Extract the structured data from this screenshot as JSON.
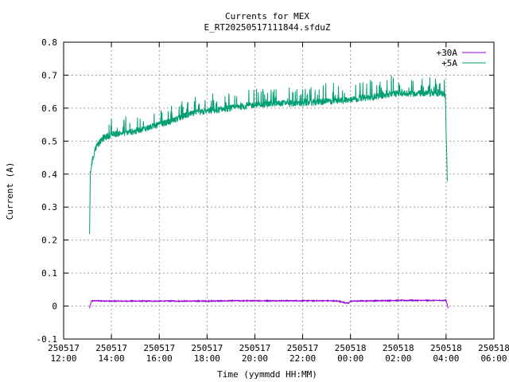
{
  "chart_data": {
    "type": "line",
    "title": "Currents for MEX",
    "subtitle": "E_RT20250517111844.sfduZ",
    "xlabel": "Time (yymmdd HH:MM)",
    "ylabel": "Current (A)",
    "xlim": [
      "250517 12:00",
      "250518 06:00"
    ],
    "ylim": [
      -0.1,
      0.8
    ],
    "yticks": [
      -0.1,
      0,
      0.1,
      0.2,
      0.3,
      0.4,
      0.5,
      0.6,
      0.7,
      0.8
    ],
    "ytick_labels": [
      "-0.1",
      "0",
      "0.1",
      "0.2",
      "0.3",
      "0.4",
      "0.5",
      "0.6",
      "0.7",
      "0.8"
    ],
    "xticks": [
      {
        "date": "250517",
        "time": "12:00"
      },
      {
        "date": "250517",
        "time": "14:00"
      },
      {
        "date": "250517",
        "time": "16:00"
      },
      {
        "date": "250517",
        "time": "18:00"
      },
      {
        "date": "250517",
        "time": "20:00"
      },
      {
        "date": "250517",
        "time": "22:00"
      },
      {
        "date": "250518",
        "time": "00:00"
      },
      {
        "date": "250518",
        "time": "02:00"
      },
      {
        "date": "250518",
        "time": "04:00"
      },
      {
        "date": "250518",
        "time": "06:00"
      }
    ],
    "grid": true,
    "legend_position": "top-right",
    "series": [
      {
        "name": "+30A",
        "color": "#9400d3",
        "x": [
          "250517 13:05",
          "250517 13:10",
          "250517 13:15",
          "250517 14:00",
          "250517 15:00",
          "250517 16:00",
          "250517 17:00",
          "250517 18:00",
          "250517 19:00",
          "250517 20:00",
          "250517 21:00",
          "250517 22:00",
          "250517 23:00",
          "250517 23:30",
          "250517 23:55",
          "250518 00:00",
          "250518 01:00",
          "250518 02:00",
          "250518 03:00",
          "250518 03:50",
          "250518 04:00",
          "250518 04:05"
        ],
        "values": [
          -0.005,
          0.015,
          0.016,
          0.015,
          0.015,
          0.015,
          0.015,
          0.015,
          0.016,
          0.016,
          0.016,
          0.016,
          0.016,
          0.015,
          0.008,
          0.015,
          0.016,
          0.017,
          0.017,
          0.017,
          0.017,
          -0.005
        ]
      },
      {
        "name": "+5A",
        "color": "#009e73",
        "x": [
          "250517 13:05",
          "250517 13:07",
          "250517 13:10",
          "250517 13:20",
          "250517 13:40",
          "250517 14:00",
          "250517 14:30",
          "250517 15:00",
          "250517 15:30",
          "250517 16:00",
          "250517 16:30",
          "250517 17:00",
          "250517 17:30",
          "250517 18:00",
          "250517 19:00",
          "250517 20:00",
          "250517 21:00",
          "250517 22:00",
          "250517 23:00",
          "250518 00:00",
          "250518 01:00",
          "250518 02:00",
          "250518 03:00",
          "250518 03:50",
          "250518 03:58",
          "250518 04:03"
        ],
        "values": [
          0.22,
          0.4,
          0.43,
          0.48,
          0.51,
          0.52,
          0.525,
          0.53,
          0.54,
          0.55,
          0.56,
          0.575,
          0.585,
          0.59,
          0.6,
          0.61,
          0.615,
          0.615,
          0.62,
          0.625,
          0.635,
          0.645,
          0.645,
          0.645,
          0.64,
          0.38
        ]
      }
    ]
  }
}
